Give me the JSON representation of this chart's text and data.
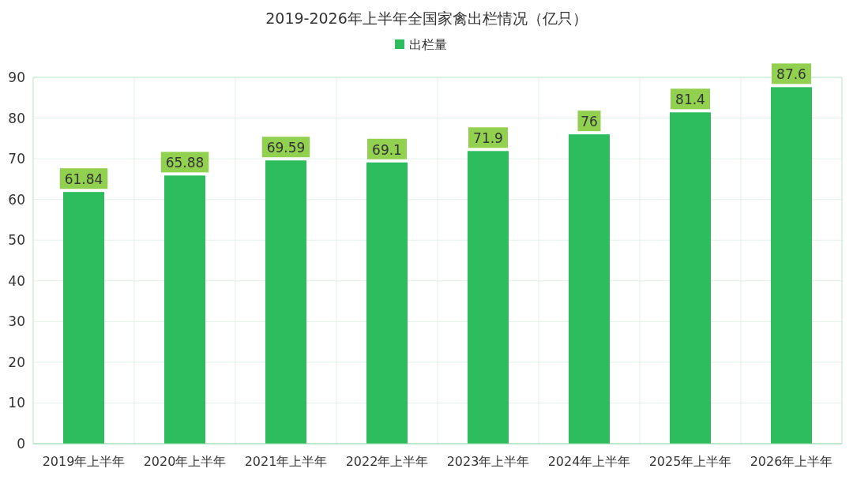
{
  "chart_data": {
    "type": "bar",
    "title": "2019-2026年上半年全国家禽出栏情况（亿只）",
    "categories": [
      "2019年上半年",
      "2020年上半年",
      "2021年上半年",
      "2022年上半年",
      "2023年上半年",
      "2024年上半年",
      "2025年上半年",
      "2026年上半年"
    ],
    "series": [
      {
        "name": "出栏量",
        "color": "#2ebd5e",
        "values": [
          61.84,
          65.88,
          69.59,
          69.1,
          71.9,
          76,
          81.4,
          87.6
        ]
      }
    ],
    "ylim": [
      0,
      90
    ],
    "yticks": [
      0,
      10,
      20,
      30,
      40,
      50,
      60,
      70,
      80,
      90
    ],
    "grid": true,
    "legend": "top",
    "data_labels": true
  }
}
